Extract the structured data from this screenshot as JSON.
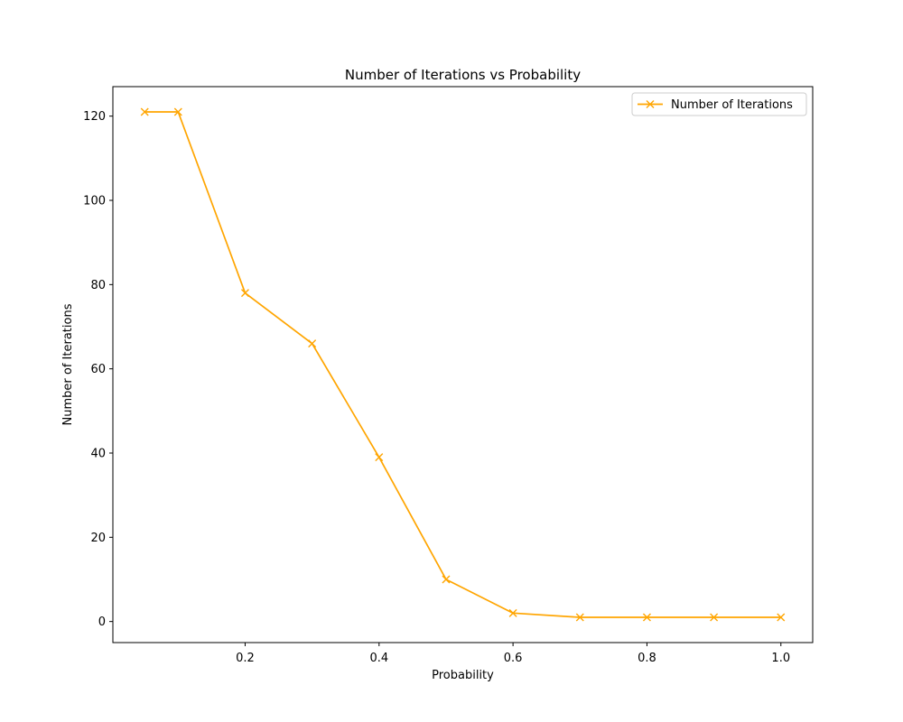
{
  "chart_data": {
    "type": "line",
    "title": "Number of Iterations vs Probability",
    "xlabel": "Probability",
    "ylabel": "Number of Iterations",
    "xlim": [
      0.0025,
      1.0475
    ],
    "ylim": [
      -5,
      127
    ],
    "x_ticks": [
      0.2,
      0.4,
      0.6,
      0.8,
      1.0
    ],
    "x_tick_labels": [
      "0.2",
      "0.4",
      "0.6",
      "0.8",
      "1.0"
    ],
    "y_ticks": [
      0,
      20,
      40,
      60,
      80,
      100,
      120
    ],
    "y_tick_labels": [
      "0",
      "20",
      "40",
      "60",
      "80",
      "100",
      "120"
    ],
    "grid": false,
    "legend_position": "upper right",
    "series": [
      {
        "name": "Number of Iterations",
        "color": "#ffa500",
        "marker": "x",
        "x": [
          0.05,
          0.1,
          0.2,
          0.3,
          0.4,
          0.5,
          0.6,
          0.7,
          0.8,
          0.9,
          1.0
        ],
        "y": [
          121,
          121,
          78,
          66,
          39,
          10,
          2,
          1,
          1,
          1,
          1
        ]
      }
    ]
  }
}
